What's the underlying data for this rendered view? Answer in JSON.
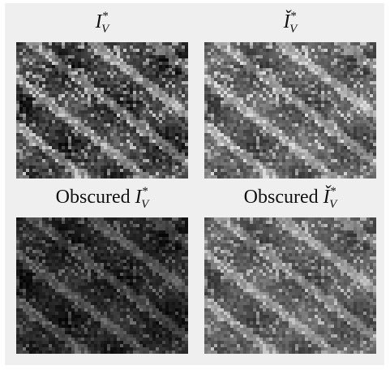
{
  "panels": [
    {
      "label": {
        "symbol": "I",
        "subscript": "V",
        "superscript": "*"
      }
    },
    {
      "label": {
        "symbol": "Ǐ",
        "subscript": "V",
        "superscript": "*"
      }
    },
    {
      "prefix": "Obscured",
      "label": {
        "symbol": "I",
        "subscript": "V",
        "superscript": "*"
      }
    },
    {
      "prefix": "Obscured",
      "label": {
        "symbol": "Ǐ",
        "subscript": "V",
        "superscript": "*"
      }
    }
  ]
}
